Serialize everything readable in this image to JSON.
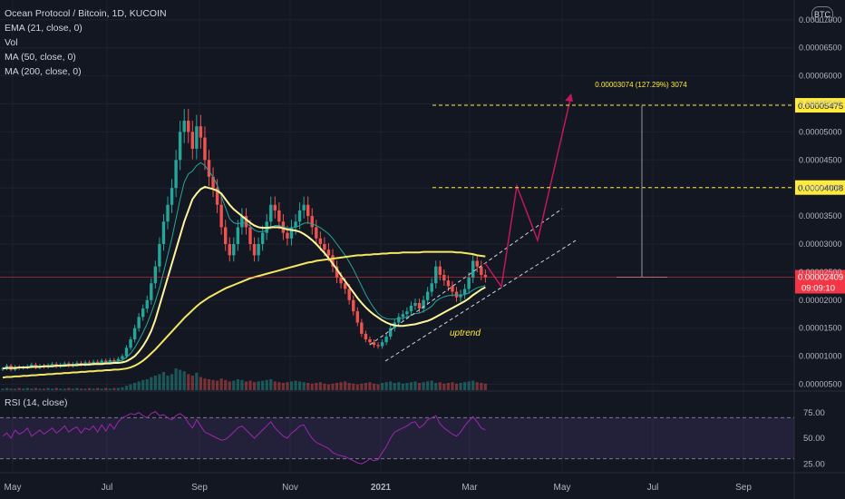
{
  "legend": {
    "symbol": "Ocean Protocol / Bitcoin, 1D, KUCOIN",
    "ema": "EMA (21, close, 0)",
    "vol": "Vol",
    "ma50": "MA (50, close, 0)",
    "ma200": "MA (200, close, 0)"
  },
  "rsi_legend": "RSI (14, close)",
  "currency_badge": "BTC",
  "colors": {
    "background": "#131722",
    "up_candle": "#26a69a",
    "down_candle": "#ef5350",
    "ema": "#26a69a",
    "ma50": "#fff59d",
    "ma200": "#f5e663",
    "rsi_line": "#9c27b0",
    "drawing": "#c2185b",
    "level_line": "#ffeb3b",
    "last_price": "#f23645"
  },
  "chart_data": [
    {
      "type": "candlestick",
      "title": "Ocean Protocol / Bitcoin, 1D, KUCOIN",
      "y_ticks": [
        "0.00000500",
        "0.00001000",
        "0.00001500",
        "0.00002000",
        "0.00002500",
        "0.00003000",
        "0.00003500",
        "0.00004000",
        "0.00004500",
        "0.00005000",
        "0.00005500",
        "0.00006000",
        "0.00006500",
        "0.00007000"
      ],
      "x_ticks": [
        "May",
        "Jul",
        "Sep",
        "Nov",
        "2021",
        "Mar",
        "May",
        "Jul",
        "Sep"
      ],
      "ylim": [
        5e-06,
        7e-05
      ],
      "closes": [
        7.8e-06,
        8.3e-06,
        7.6e-06,
        8.1e-06,
        7.9e-06,
        8e-06,
        8.2e-06,
        8.5e-06,
        8e-06,
        8.3e-06,
        8.1e-06,
        8.4e-06,
        8.6e-06,
        8.2e-06,
        8.5e-06,
        8.7e-06,
        8.3e-06,
        8.6e-06,
        8.8e-06,
        8.5e-06,
        8.9e-06,
        8.7e-06,
        9e-06,
        8.8e-06,
        9.2e-06,
        8.9e-06,
        9.3e-06,
        9.1e-06,
        9.5e-06,
        1e-05,
        1.15e-05,
        1.3e-05,
        1.5e-05,
        1.7e-05,
        1.85e-05,
        2e-05,
        2.3e-05,
        2.6e-05,
        3e-05,
        3.4e-05,
        3.7e-05,
        4e-05,
        4.5e-05,
        5e-05,
        5.2e-05,
        5e-05,
        4.7e-05,
        5.1e-05,
        4.9e-05,
        4.5e-05,
        4.2e-05,
        4e-05,
        3.7e-05,
        3.3e-05,
        3e-05,
        2.8e-05,
        3e-05,
        3.3e-05,
        3.5e-05,
        3.3e-05,
        3e-05,
        2.8e-05,
        3e-05,
        3.2e-05,
        3.4e-05,
        3.7e-05,
        3.6e-05,
        3.4e-05,
        3.2e-05,
        3.1e-05,
        3.3e-05,
        3.4e-05,
        3.6e-05,
        3.7e-05,
        3.5e-05,
        3.3e-05,
        3.1e-05,
        3e-05,
        2.9e-05,
        2.8e-05,
        2.6e-05,
        2.4e-05,
        2.3e-05,
        2.2e-05,
        2e-05,
        1.8e-05,
        1.6e-05,
        1.4e-05,
        1.3e-05,
        1.25e-05,
        1.2e-05,
        1.18e-05,
        1.25e-05,
        1.35e-05,
        1.5e-05,
        1.6e-05,
        1.7e-05,
        1.75e-05,
        1.8e-05,
        1.9e-05,
        1.95e-05,
        1.85e-05,
        2e-05,
        2.15e-05,
        2.3e-05,
        2.6e-05,
        2.45e-05,
        2.35e-05,
        2.25e-05,
        2.15e-05,
        2.05e-05,
        2.1e-05,
        2.2e-05,
        2.4e-05,
        2.7e-05,
        2.6e-05,
        2.45e-05,
        2.41e-05
      ],
      "ema21": [
        7.8e-06,
        7.9e-06,
        7.9e-06,
        8e-06,
        8e-06,
        8.1e-06,
        8.1e-06,
        8.2e-06,
        8.2e-06,
        8.2e-06,
        8.3e-06,
        8.3e-06,
        8.4e-06,
        8.4e-06,
        8.4e-06,
        8.5e-06,
        8.5e-06,
        8.5e-06,
        8.6e-06,
        8.6e-06,
        8.6e-06,
        8.7e-06,
        8.7e-06,
        8.8e-06,
        8.8e-06,
        8.9e-06,
        8.9e-06,
        9e-06,
        9.1e-06,
        9.3e-06,
        9.8e-06,
        1.05e-05,
        1.15e-05,
        1.28e-05,
        1.42e-05,
        1.58e-05,
        1.77e-05,
        1.98e-05,
        2.22e-05,
        2.5e-05,
        2.8e-05,
        3.1e-05,
        3.45e-05,
        3.8e-05,
        4.1e-05,
        4.25e-05,
        4.3e-05,
        4.4e-05,
        4.45e-05,
        4.4e-05,
        4.3e-05,
        4.2e-05,
        4.05e-05,
        3.85e-05,
        3.65e-05,
        3.45e-05,
        3.38e-05,
        3.36e-05,
        3.38e-05,
        3.37e-05,
        3.32e-05,
        3.25e-05,
        3.22e-05,
        3.22e-05,
        3.24e-05,
        3.3e-05,
        3.33e-05,
        3.33e-05,
        3.31e-05,
        3.28e-05,
        3.29e-05,
        3.3e-05,
        3.33e-05,
        3.37e-05,
        3.38e-05,
        3.36e-05,
        3.33e-05,
        3.29e-05,
        3.24e-05,
        3.18e-05,
        3.1e-05,
        3e-05,
        2.9e-05,
        2.8e-05,
        2.68e-05,
        2.55e-05,
        2.4e-05,
        2.25e-05,
        2.1e-05,
        1.97e-05,
        1.86e-05,
        1.76e-05,
        1.7e-05,
        1.67e-05,
        1.66e-05,
        1.66e-05,
        1.67e-05,
        1.68e-05,
        1.7e-05,
        1.73e-05,
        1.76e-05,
        1.77e-05,
        1.8e-05,
        1.84e-05,
        1.89e-05,
        1.98e-05,
        2.03e-05,
        2.06e-05,
        2.08e-05,
        2.09e-05,
        2.09e-05,
        2.09e-05,
        2.1e-05,
        2.13e-05,
        2.18e-05,
        2.22e-05,
        2.24e-05,
        2.26e-05
      ],
      "ma50": [
        7.8e-06,
        7.9e-06,
        7.9e-06,
        7.9e-06,
        8e-06,
        8e-06,
        8e-06,
        8.1e-06,
        8.1e-06,
        8.1e-06,
        8.2e-06,
        8.2e-06,
        8.2e-06,
        8.3e-06,
        8.3e-06,
        8.3e-06,
        8.4e-06,
        8.4e-06,
        8.4e-06,
        8.5e-06,
        8.5e-06,
        8.5e-06,
        8.6e-06,
        8.6e-06,
        8.6e-06,
        8.7e-06,
        8.7e-06,
        8.8e-06,
        8.8e-06,
        8.9e-06,
        9.1e-06,
        9.5e-06,
        1e-05,
        1.08e-05,
        1.18e-05,
        1.3e-05,
        1.45e-05,
        1.65e-05,
        1.9e-05,
        2.15e-05,
        2.4e-05,
        2.65e-05,
        2.9e-05,
        3.15e-05,
        3.4e-05,
        3.6e-05,
        3.8e-05,
        3.9e-05,
        3.98e-05,
        4.02e-05,
        4e-05,
        3.98e-05,
        3.95e-05,
        3.9e-05,
        3.8e-05,
        3.7e-05,
        3.62e-05,
        3.56e-05,
        3.5e-05,
        3.44e-05,
        3.38e-05,
        3.33e-05,
        3.3e-05,
        3.29e-05,
        3.29e-05,
        3.3e-05,
        3.3e-05,
        3.3e-05,
        3.28e-05,
        3.26e-05,
        3.25e-05,
        3.24e-05,
        3.22e-05,
        3.18e-05,
        3.13e-05,
        3.07e-05,
        3e-05,
        2.92e-05,
        2.84e-05,
        2.75e-05,
        2.65e-05,
        2.55e-05,
        2.44e-05,
        2.34e-05,
        2.24e-05,
        2.14e-05,
        2.04e-05,
        1.95e-05,
        1.87e-05,
        1.8e-05,
        1.74e-05,
        1.69e-05,
        1.64e-05,
        1.6e-05,
        1.57e-05,
        1.55e-05,
        1.54e-05,
        1.54e-05,
        1.55e-05,
        1.56e-05,
        1.57e-05,
        1.59e-05,
        1.61e-05,
        1.63e-05,
        1.66e-05,
        1.7e-05,
        1.74e-05,
        1.78e-05,
        1.82e-05,
        1.86e-05,
        1.9e-05,
        1.94e-05,
        1.98e-05,
        2.03e-05,
        2.09e-05,
        2.14e-05,
        2.19e-05,
        2.23e-05
      ],
      "ma200": [
        6.2e-06,
        6.3e-06,
        6.3e-06,
        6.4e-06,
        6.4e-06,
        6.5e-06,
        6.5e-06,
        6.6e-06,
        6.6e-06,
        6.7e-06,
        6.7e-06,
        6.8e-06,
        6.8e-06,
        6.9e-06,
        6.9e-06,
        7e-06,
        7e-06,
        7.1e-06,
        7.1e-06,
        7.2e-06,
        7.2e-06,
        7.3e-06,
        7.3e-06,
        7.4e-06,
        7.4e-06,
        7.5e-06,
        7.5e-06,
        7.6e-06,
        7.6e-06,
        7.7e-06,
        7.8e-06,
        8e-06,
        8.3e-06,
        8.7e-06,
        9.2e-06,
        9.8e-06,
        1.05e-05,
        1.12e-05,
        1.2e-05,
        1.28e-05,
        1.36e-05,
        1.44e-05,
        1.52e-05,
        1.6e-05,
        1.68e-05,
        1.75e-05,
        1.82e-05,
        1.89e-05,
        1.95e-05,
        2e-05,
        2.05e-05,
        2.09e-05,
        2.13e-05,
        2.17e-05,
        2.21e-05,
        2.24e-05,
        2.27e-05,
        2.3e-05,
        2.33e-05,
        2.36e-05,
        2.39e-05,
        2.41e-05,
        2.43e-05,
        2.45e-05,
        2.47e-05,
        2.49e-05,
        2.51e-05,
        2.53e-05,
        2.55e-05,
        2.57e-05,
        2.59e-05,
        2.61e-05,
        2.63e-05,
        2.65e-05,
        2.67e-05,
        2.68e-05,
        2.7e-05,
        2.71e-05,
        2.72e-05,
        2.73e-05,
        2.74e-05,
        2.75e-05,
        2.76e-05,
        2.77e-05,
        2.78e-05,
        2.79e-05,
        2.8e-05,
        2.8e-05,
        2.81e-05,
        2.81e-05,
        2.82e-05,
        2.82e-05,
        2.83e-05,
        2.83e-05,
        2.84e-05,
        2.84e-05,
        2.84e-05,
        2.85e-05,
        2.85e-05,
        2.85e-05,
        2.85e-05,
        2.85e-05,
        2.86e-05,
        2.86e-05,
        2.86e-05,
        2.86e-05,
        2.86e-05,
        2.86e-05,
        2.86e-05,
        2.86e-05,
        2.85e-05,
        2.85e-05,
        2.84e-05,
        2.83e-05,
        2.82e-05,
        2.8e-05,
        2.79e-05,
        2.78e-05
      ],
      "volumes": [
        2,
        3,
        2,
        2,
        3,
        2,
        3,
        2,
        3,
        2,
        2,
        3,
        2,
        3,
        2,
        2,
        3,
        2,
        3,
        2,
        2,
        3,
        2,
        3,
        2,
        3,
        2,
        3,
        3,
        4,
        6,
        8,
        10,
        12,
        14,
        15,
        18,
        20,
        22,
        25,
        20,
        22,
        30,
        28,
        26,
        22,
        20,
        24,
        18,
        16,
        15,
        14,
        13,
        16,
        14,
        12,
        13,
        15,
        14,
        12,
        13,
        11,
        12,
        13,
        14,
        15,
        12,
        11,
        10,
        11,
        12,
        13,
        12,
        11,
        10,
        9,
        10,
        11,
        9,
        8,
        9,
        10,
        11,
        12,
        10,
        9,
        8,
        9,
        10,
        11,
        9,
        8,
        10,
        11,
        12,
        10,
        11,
        9,
        10,
        11,
        12,
        10,
        11,
        12,
        13,
        10,
        11,
        9,
        10,
        11,
        9,
        10,
        11,
        12,
        13,
        11,
        10,
        9
      ],
      "current_price": "0.00002409",
      "countdown": "09:09:10",
      "level_lines": [
        "0.00005475",
        "0.00004008"
      ],
      "measurement_label": "0.00003074 (127.29%) 3074",
      "annotation": "uptrend"
    },
    {
      "type": "line",
      "title": "RSI (14, close)",
      "y_ticks": [
        "75.00",
        "50.00",
        "25.00"
      ],
      "ylim": [
        20,
        80
      ],
      "bands": [
        70,
        30
      ],
      "values": [
        52,
        55,
        50,
        58,
        54,
        56,
        60,
        52,
        55,
        58,
        54,
        57,
        60,
        55,
        58,
        62,
        56,
        59,
        61,
        55,
        60,
        58,
        62,
        56,
        63,
        57,
        64,
        59,
        66,
        70,
        72,
        74,
        73,
        75,
        72,
        70,
        74,
        76,
        72,
        73,
        70,
        68,
        72,
        74,
        71,
        65,
        60,
        68,
        62,
        56,
        54,
        52,
        50,
        48,
        49,
        52,
        56,
        60,
        62,
        58,
        54,
        50,
        54,
        58,
        62,
        66,
        60,
        56,
        52,
        50,
        55,
        58,
        62,
        63,
        56,
        50,
        46,
        44,
        42,
        40,
        36,
        34,
        33,
        32,
        30,
        28,
        26,
        25,
        27,
        30,
        28,
        29,
        36,
        42,
        50,
        56,
        58,
        60,
        62,
        65,
        66,
        60,
        63,
        68,
        70,
        72,
        64,
        60,
        57,
        54,
        52,
        56,
        62,
        67,
        71,
        66,
        60,
        58
      ],
      "x_ticks": [
        "May",
        "Jul",
        "Sep",
        "Nov",
        "2021",
        "Mar",
        "May",
        "Jul",
        "Sep"
      ]
    }
  ]
}
